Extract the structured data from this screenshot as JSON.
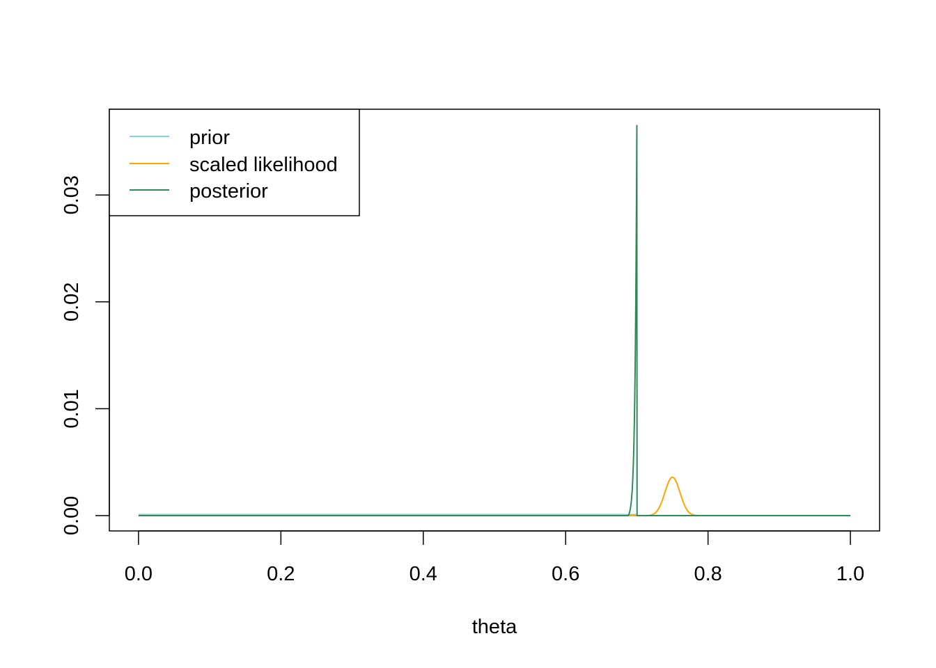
{
  "chart_data": {
    "type": "line",
    "title": "",
    "xlabel": "theta",
    "ylabel": "",
    "xlim": [
      0,
      1
    ],
    "ylim": [
      0,
      0.0365
    ],
    "x_ticks": [
      "0.0",
      "0.2",
      "0.4",
      "0.6",
      "0.8",
      "1.0"
    ],
    "y_ticks": [
      "0.00",
      "0.01",
      "0.02",
      "0.03"
    ],
    "grid": false,
    "legend_position": "top-left",
    "series": [
      {
        "name": "prior",
        "color": "#87CEEB",
        "shape": "uniform",
        "points": [
          [
            0,
            0.0001
          ],
          [
            0.7,
            0.0001
          ],
          [
            0.701,
            0
          ],
          [
            1,
            0
          ]
        ]
      },
      {
        "name": "scaled likelihood",
        "color": "#FFA500",
        "shape": "bell",
        "peak_x": 0.75,
        "peak_y": 0.0036,
        "spread": 0.0105,
        "support": [
          0.69,
          0.8
        ]
      },
      {
        "name": "posterior",
        "color": "#2E8B57",
        "shape": "spike",
        "rise_start_x": 0.688,
        "peak_x": 0.7,
        "peak_y": 0.0365,
        "rise_scale": 0.0025
      }
    ]
  }
}
